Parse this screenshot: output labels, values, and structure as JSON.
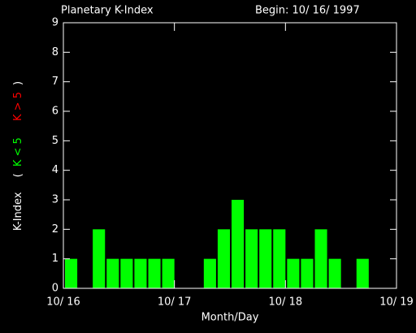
{
  "chart_data": {
    "type": "bar",
    "title": "Planetary K-Index",
    "subtitle": "Begin: 10/ 16/ 1997",
    "xlabel": "Month/Day",
    "ylabel": "K-Index",
    "legend_open": "(",
    "legend_close": ")",
    "legend": [
      {
        "label": "K < 5",
        "color": "#00ff00"
      },
      {
        "label": "K > 5",
        "color": "#ff0000"
      }
    ],
    "x": [
      0,
      0.125,
      0.25,
      0.375,
      0.5,
      0.625,
      0.75,
      0.875,
      1,
      1.125,
      1.25,
      1.375,
      1.5,
      1.625,
      1.75,
      1.875,
      2,
      2.125,
      2.25,
      2.375,
      2.5,
      2.625,
      2.75,
      2.875
    ],
    "values": [
      1,
      0,
      2,
      1,
      1,
      1,
      1,
      1,
      0,
      0,
      1,
      2,
      3,
      2,
      2,
      2,
      1,
      1,
      2,
      1,
      0,
      1,
      0,
      0
    ],
    "color": "#00ff00",
    "xlim": [
      0,
      3
    ],
    "xticks": [
      {
        "value": 0,
        "label": "10/ 16"
      },
      {
        "value": 1,
        "label": "10/ 17"
      },
      {
        "value": 2,
        "label": "10/ 18"
      },
      {
        "value": 3,
        "label": "10/ 19"
      }
    ],
    "ylim": [
      0,
      9
    ],
    "yticks": [
      0,
      1,
      2,
      3,
      4,
      5,
      6,
      7,
      8,
      9
    ]
  }
}
